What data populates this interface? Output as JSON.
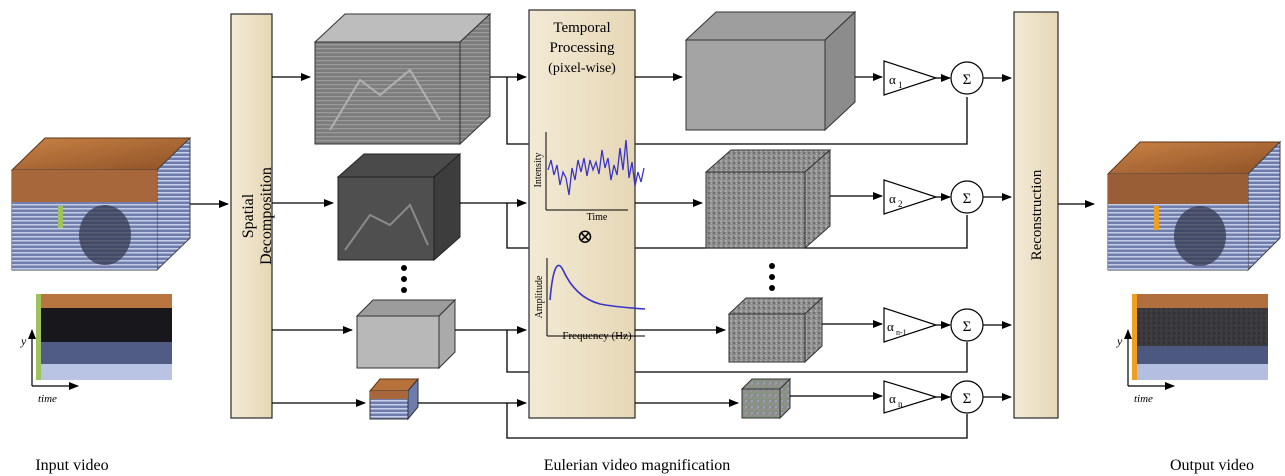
{
  "captions": {
    "input_video": "Input video",
    "middle": "Eulerian video magnification",
    "output_video": "Output video"
  },
  "blocks": {
    "spatial_line1": "Spatial",
    "spatial_line2": "Decomposition",
    "temporal_line1": "Temporal",
    "temporal_line2": "Processing",
    "temporal_line3": "(pixel-wise)",
    "reconstruction": "Reconstruction"
  },
  "temporal_plots": {
    "intensity_ylabel": "Intensity",
    "intensity_xlabel": "Time",
    "multiply_symbol": "⊗",
    "amplitude_ylabel": "Amplitude",
    "amplitude_xlabel": "Frequency (Hz)"
  },
  "gains": {
    "alpha": "α",
    "sub1": "1",
    "sub2": "2",
    "sub3": "n-1",
    "sub4": "n",
    "sum_symbol": "Σ"
  },
  "slice_axes": {
    "y": "y",
    "time": "time"
  },
  "colors": {
    "block_fill": "#ede1c8",
    "block_stroke": "#2a2a2a",
    "wood": "#b9733c",
    "accent_green": "#9dc35a",
    "accent_orange": "#f0a020",
    "curve_blue": "#3a35c4"
  }
}
